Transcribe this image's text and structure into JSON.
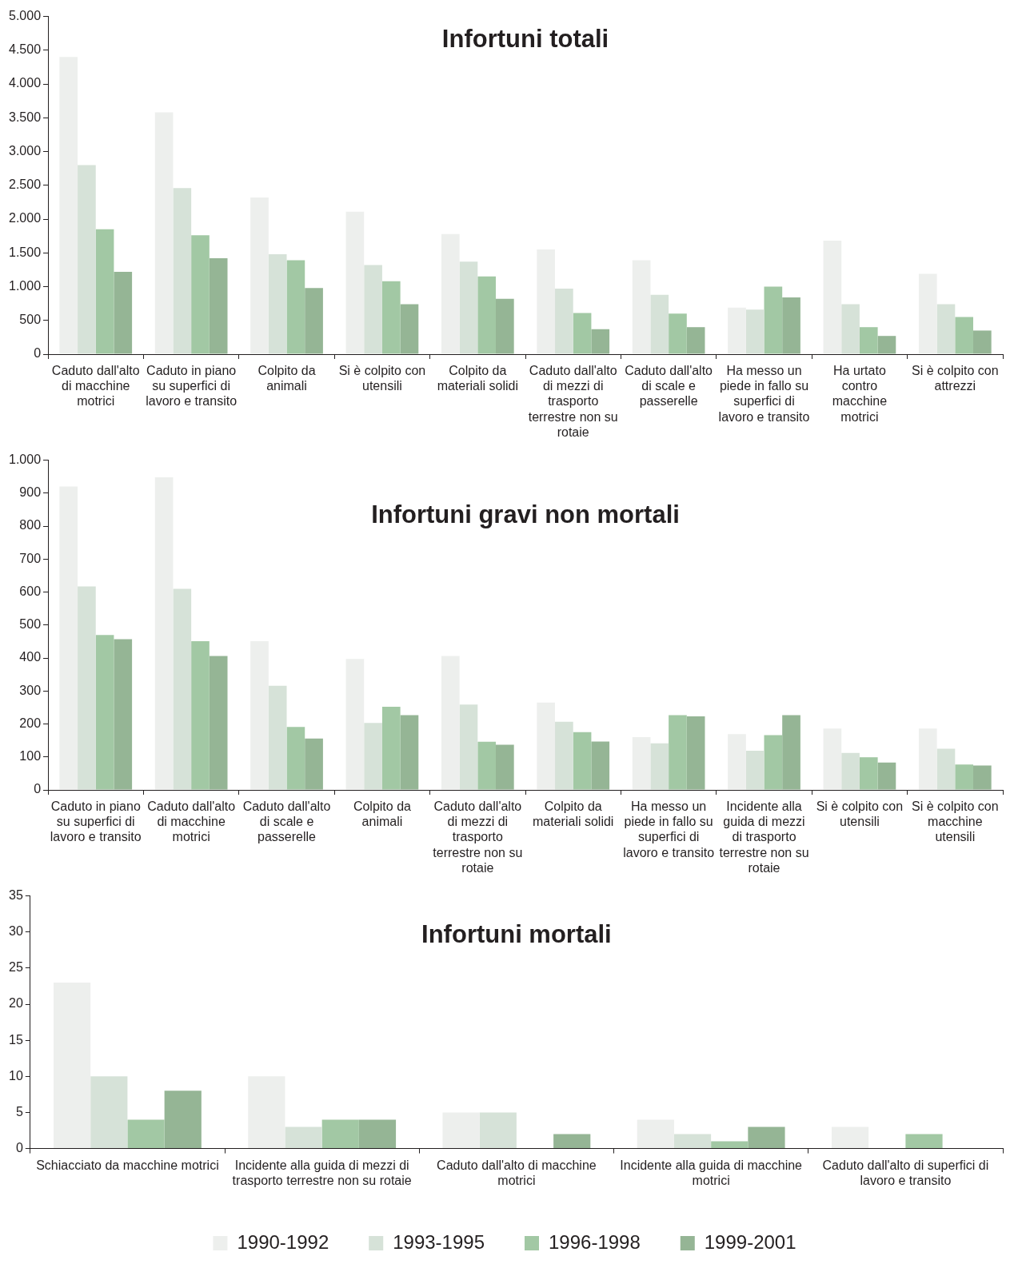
{
  "chart_data": [
    {
      "type": "bar",
      "title": "Infortuni totali",
      "categories": [
        "Caduto dall'alto di macchine motrici",
        "Caduto in piano su superfici di lavoro e transito",
        "Colpito da animali",
        "Si è colpito con utensili",
        "Colpito da materiali solidi",
        "Caduto dall'alto di mezzi di trasporto terrestre non su rotaie",
        "Caduto dall'alto di scale e passerelle",
        "Ha messo un piede in fallo su superfici di lavoro e transito",
        "Ha urtato contro macchine motrici",
        "Si è colpito con attrezzi"
      ],
      "series": [
        {
          "color": "#edefed",
          "values": [
            4400,
            3580,
            2320,
            2110,
            1780,
            1550,
            1390,
            690,
            1680,
            1190
          ]
        },
        {
          "color": "#d6e2d8",
          "values": [
            2800,
            2460,
            1480,
            1320,
            1370,
            970,
            880,
            660,
            740,
            740
          ]
        },
        {
          "color": "#a2c8a4",
          "values": [
            1850,
            1760,
            1390,
            1080,
            1150,
            610,
            600,
            1000,
            400,
            550
          ]
        },
        {
          "color": "#95b595",
          "values": [
            1220,
            1420,
            980,
            740,
            820,
            370,
            400,
            840,
            270,
            350
          ]
        }
      ],
      "ylim": [
        0,
        5000
      ],
      "yticks": [
        0,
        {
          "value": 500,
          "label": "500"
        },
        {
          "value": 1000,
          "label": "1.000"
        },
        {
          "value": 1500,
          "label": "1.500"
        },
        {
          "value": 2000,
          "label": "2.000"
        },
        {
          "value": 2500,
          "label": "2.500"
        },
        {
          "value": 3000,
          "label": "3.000"
        },
        {
          "value": 3500,
          "label": "3.500"
        },
        {
          "value": 4000,
          "label": "4.000"
        },
        {
          "value": 4500,
          "label": "4.500"
        },
        {
          "value": 5000,
          "label": "5.000"
        }
      ],
      "grid": false
    },
    {
      "type": "bar",
      "title": "Infortuni gravi non mortali",
      "categories": [
        "Caduto in piano su superfici di lavoro e transito",
        "Caduto dall'alto di macchine motrici",
        "Caduto dall'alto di scale e passerelle",
        "Colpito da animali",
        "Caduto dall'alto di mezzi di trasporto terrestre non su rotaie",
        "Colpito da materiali solidi",
        "Ha messo un piede in fallo su superfici di lavoro e transito",
        "Incidente alla guida di mezzi di trasporto terrestre non su rotaie",
        "Si è colpito con utensili",
        "Si è colpito con macchine utensili"
      ],
      "series": [
        {
          "color": "#edefed",
          "values": [
            920,
            948,
            451,
            397,
            406,
            265,
            160,
            169,
            186,
            186
          ]
        },
        {
          "color": "#d6e2d8",
          "values": [
            617,
            610,
            316,
            203,
            259,
            207,
            141,
            119,
            112,
            125
          ]
        },
        {
          "color": "#a2c8a4",
          "values": [
            470,
            451,
            191,
            252,
            146,
            175,
            227,
            166,
            99,
            77
          ]
        },
        {
          "color": "#95b595",
          "values": [
            457,
            406,
            156,
            227,
            137,
            147,
            223,
            227,
            83,
            74
          ]
        }
      ],
      "ylim": [
        0,
        1000
      ],
      "yticks": [
        0,
        100,
        200,
        300,
        400,
        500,
        600,
        700,
        800,
        900,
        {
          "value": 1000,
          "label": "1.000"
        }
      ],
      "grid": false
    },
    {
      "type": "bar",
      "title": "Infortuni mortali",
      "categories": [
        "Schiacciato da macchine motrici",
        "Incidente alla guida di mezzi di trasporto terrestre non su rotaie",
        "Caduto dall'alto di macchine motrici",
        "Incidente alla guida di macchine motrici",
        "Caduto dall'alto di superfici di lavoro e transito"
      ],
      "series": [
        {
          "name": "1990-1992",
          "color": "#edefed",
          "values": [
            23,
            10,
            5,
            4,
            3
          ]
        },
        {
          "name": "1993-1995",
          "color": "#d6e2d8",
          "values": [
            10,
            3,
            5,
            2,
            null
          ]
        },
        {
          "name": "1996-1998",
          "color": "#a2c8a4",
          "values": [
            4,
            4,
            null,
            1,
            2
          ]
        },
        {
          "name": "1999-2001",
          "color": "#95b595",
          "values": [
            8,
            4,
            2,
            3,
            null
          ]
        }
      ],
      "ylim": [
        0,
        35
      ],
      "yticks": [
        0,
        5,
        10,
        15,
        20,
        25,
        30,
        35
      ],
      "grid": false,
      "legend": "bottom"
    }
  ]
}
